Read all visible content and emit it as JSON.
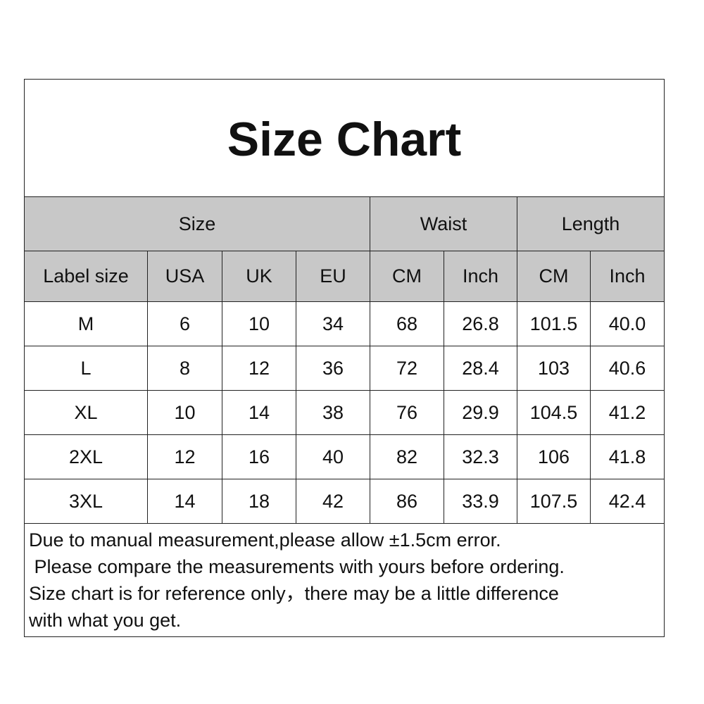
{
  "title": "Size Chart",
  "group_headers": [
    "Size",
    "Waist",
    "Length"
  ],
  "column_headers": [
    "Label size",
    "USA",
    "UK",
    "EU",
    "CM",
    "Inch",
    "CM",
    "Inch"
  ],
  "rows": [
    [
      "M",
      "6",
      "10",
      "34",
      "68",
      "26.8",
      "101.5",
      "40.0"
    ],
    [
      "L",
      "8",
      "12",
      "36",
      "72",
      "28.4",
      "103",
      "40.6"
    ],
    [
      "XL",
      "10",
      "14",
      "38",
      "76",
      "29.9",
      "104.5",
      "41.2"
    ],
    [
      "2XL",
      "12",
      "16",
      "40",
      "82",
      "32.3",
      "106",
      "41.8"
    ],
    [
      "3XL",
      "14",
      "18",
      "42",
      "86",
      "33.9",
      "107.5",
      "42.4"
    ]
  ],
  "notes": [
    "Due to manual measurement,please allow ±1.5cm error.",
    " Please compare the measurements with yours before ordering.",
    "Size chart is for reference only，there may be a little difference",
    "with what you get."
  ],
  "colors": {
    "header_bg": "#c8c8c8",
    "border": "#222222"
  }
}
